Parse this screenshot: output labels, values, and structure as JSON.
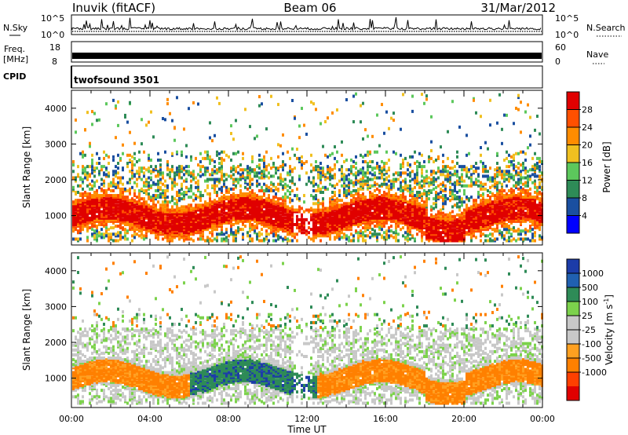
{
  "header": {
    "station": "Inuvik (fitACF)",
    "beam": "Beam 06",
    "date": "31/Mar/2012"
  },
  "strips": {
    "nsky_label": "N.Sky",
    "nsky_ticks": [
      "10^5",
      "10^0"
    ],
    "nsearch_label": "N.Search",
    "nsearch_ticks": [
      "10^5",
      "10^0"
    ],
    "freq_label": "Freq.",
    "freq_unit": "[MHz]",
    "freq_ticks": [
      "18",
      "8"
    ],
    "nave_label": "Nave",
    "nave_ticks": [
      "60",
      "0"
    ],
    "cpid_label": "CPID",
    "cpid_value": "twofsound 3501"
  },
  "colors": {
    "power_scale": [
      "#0000ff",
      "#1a4fa0",
      "#2e8b57",
      "#5cc85c",
      "#f0c020",
      "#ff8c00",
      "#ff5000",
      "#e00000"
    ],
    "velocity_scale": [
      "#1c3ca8",
      "#2060b0",
      "#2e8b57",
      "#7cd24c",
      "#c8c8c8",
      "#c8c8c8",
      "#ffa020",
      "#ff8000",
      "#ff4000",
      "#e00000"
    ],
    "ground_scatter": "#c8c8c8"
  },
  "chart_data": [
    {
      "type": "heatmap",
      "title": "",
      "xlabel": "",
      "ylabel": "Slant Range [km]",
      "x_ticks": [
        "00:00",
        "04:00",
        "08:00",
        "12:00",
        "16:00",
        "20:00",
        "00:00"
      ],
      "xlim_hours": [
        0,
        24
      ],
      "y_ticks": [
        1000,
        2000,
        3000,
        4000
      ],
      "ylim": [
        180,
        4500
      ],
      "colorbar_label": "Power [dB]",
      "colorbar_ticks": [
        4,
        8,
        12,
        16,
        20,
        24,
        28
      ],
      "clim": [
        0,
        30
      ],
      "dominant_band_km": [
        500,
        1500
      ],
      "band_value_db": 28
    },
    {
      "type": "heatmap",
      "title": "",
      "xlabel": "Time UT",
      "ylabel": "Slant Range [km]",
      "x_ticks": [
        "00:00",
        "04:00",
        "08:00",
        "12:00",
        "16:00",
        "20:00",
        "00:00"
      ],
      "xlim_hours": [
        0,
        24
      ],
      "y_ticks": [
        1000,
        2000,
        3000,
        4000
      ],
      "ylim": [
        180,
        4500
      ],
      "colorbar_label": "Velocity [m s^-1]",
      "colorbar_ticks": [
        1000,
        500,
        100,
        25,
        -25,
        -100,
        -500,
        -1000
      ],
      "colorbar_unit_main": "Velocity [m s",
      "colorbar_unit_exp": "-1",
      "colorbar_unit_end": "]",
      "dominant_band_km": [
        500,
        1500
      ]
    }
  ]
}
